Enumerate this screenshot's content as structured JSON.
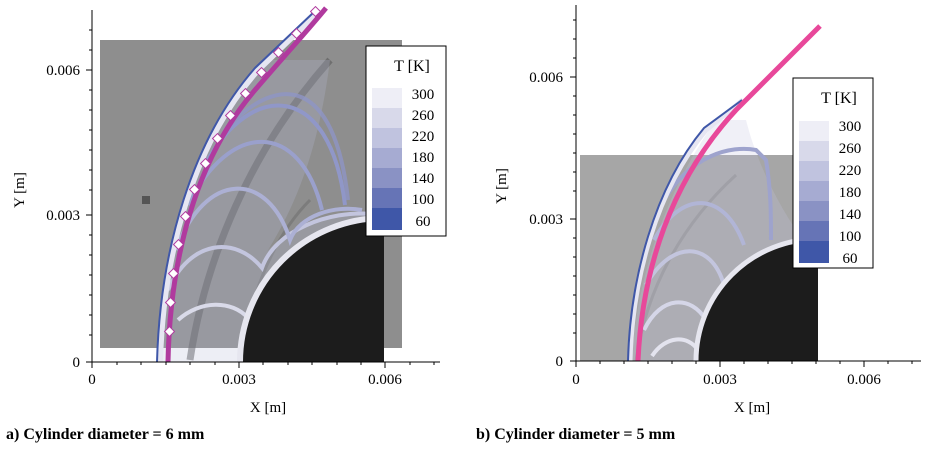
{
  "figure": {
    "panels": [
      {
        "id": "a",
        "caption": "a) Cylinder diameter = 6 mm",
        "xlabel": "X [m]",
        "ylabel": "Y [m]",
        "x_ticks": [
          "0",
          "0.003",
          "0.006"
        ],
        "y_ticks": [
          "0",
          "0.003",
          "0.006"
        ],
        "legend_title": "T [K]",
        "legend_levels": [
          "300",
          "260",
          "220",
          "180",
          "140",
          "100",
          "60"
        ]
      },
      {
        "id": "b",
        "caption": "b) Cylinder diameter = 5 mm",
        "xlabel": "X [m]",
        "ylabel": "Y [m]",
        "x_ticks": [
          "0",
          "0.003",
          "0.006"
        ],
        "y_ticks": [
          "0",
          "0.003",
          "0.006"
        ],
        "legend_title": "T [K]",
        "legend_levels": [
          "300",
          "260",
          "220",
          "180",
          "140",
          "100",
          "60"
        ]
      }
    ]
  },
  "colors": {
    "shock_a": "#b03a9e",
    "shock_b": "#e8489a",
    "temp_low": "#3f57a8",
    "temp_high": "#eeeef6",
    "cylinder": "#1c1c1c",
    "schlieren_a": "#8e8e8e",
    "schlieren_b": "#a6a6a6"
  }
}
